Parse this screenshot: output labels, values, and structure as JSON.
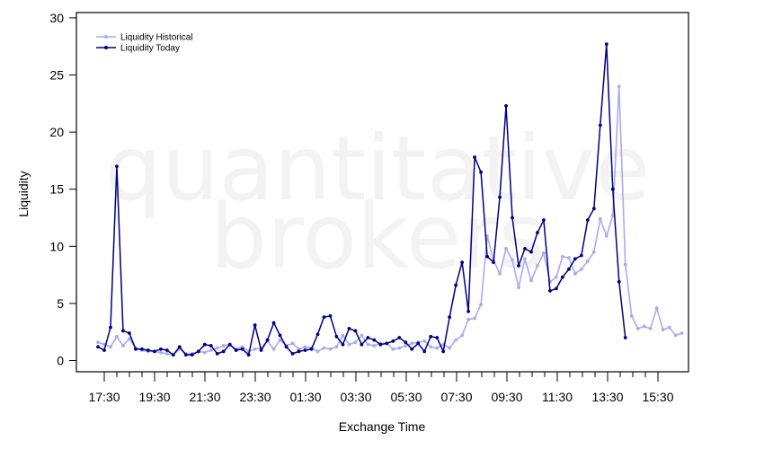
{
  "watermark": {
    "line1": "quantitative",
    "line2": "brokers"
  },
  "colors": {
    "historical": "#aaaaee",
    "today": "#000080",
    "axis": "#000000"
  },
  "chart_data": {
    "type": "line",
    "title": "",
    "xlabel": "Exchange Time",
    "ylabel": "Liquidity",
    "ylim": [
      0,
      30
    ],
    "yticks": [
      0,
      5,
      10,
      15,
      20,
      25,
      30
    ],
    "x_start_index": 0,
    "x_tick_labels": [
      {
        "i": 1,
        "label": "17:30"
      },
      {
        "i": 5,
        "label": "19:30"
      },
      {
        "i": 9,
        "label": "21:30"
      },
      {
        "i": 13,
        "label": "23:30"
      },
      {
        "i": 17,
        "label": "01:30"
      },
      {
        "i": 21,
        "label": "03:30"
      },
      {
        "i": 25,
        "label": "05:30"
      },
      {
        "i": 29,
        "label": "07:30"
      },
      {
        "i": 33,
        "label": "09:30"
      },
      {
        "i": 37,
        "label": "11:30"
      },
      {
        "i": 41,
        "label": "13:30"
      },
      {
        "i": 45,
        "label": "15:30"
      }
    ],
    "grid": false,
    "legend_position": "top-left",
    "series": [
      {
        "name": "Liquidity Historical",
        "color": "#aaaaee",
        "values": [
          1.6,
          1.4,
          1.2,
          2.1,
          1.3,
          1.9,
          1.1,
          0.9,
          0.8,
          0.8,
          0.7,
          0.6,
          0.5,
          1.0,
          0.6,
          0.6,
          0.8,
          0.7,
          0.9,
          1.1,
          1.3,
          1.4,
          1.0,
          1.2,
          0.8,
          1.0,
          1.1,
          1.7,
          1.0,
          1.8,
          1.3,
          1.5,
          1.0,
          1.2,
          1.1,
          0.8,
          1.1,
          1.0,
          1.2,
          2.2,
          1.4,
          1.6,
          2.2,
          1.4,
          1.3,
          1.5,
          1.5,
          1.0,
          1.1,
          1.3,
          1.5,
          1.6,
          1.7,
          1.2,
          1.1,
          1.4,
          1.1,
          1.8,
          2.2,
          3.6,
          3.7,
          4.9,
          10.9,
          8.8,
          7.6,
          9.8,
          8.8,
          6.4,
          8.9,
          7.0,
          8.3,
          9.4,
          6.9,
          7.3,
          9.1,
          9.0,
          7.6,
          8.0,
          8.7,
          9.5,
          12.4,
          10.9,
          12.7,
          24.0,
          8.4,
          3.9,
          2.8,
          3.0,
          2.8,
          4.6,
          2.7,
          2.9,
          2.2,
          2.4
        ]
      },
      {
        "name": "Liquidity Today",
        "color": "#000080",
        "values": [
          1.2,
          0.9,
          2.9,
          17.0,
          2.6,
          2.4,
          1.0,
          1.0,
          0.9,
          0.8,
          1.0,
          0.9,
          0.5,
          1.2,
          0.5,
          0.5,
          0.8,
          1.4,
          1.3,
          0.6,
          0.8,
          1.4,
          0.9,
          1.0,
          0.5,
          3.1,
          0.9,
          1.8,
          3.3,
          2.2,
          1.2,
          0.6,
          0.8,
          0.9,
          1.0,
          2.3,
          3.8,
          3.9,
          2.1,
          1.4,
          2.8,
          2.6,
          1.4,
          2.0,
          1.8,
          1.4,
          1.5,
          1.7,
          2.0,
          1.6,
          1.0,
          1.5,
          0.8,
          2.1,
          2.0,
          0.8,
          3.8,
          6.6,
          8.6,
          4.3,
          17.8,
          16.5,
          9.1,
          8.6,
          14.3,
          22.3,
          12.5,
          8.3,
          9.8,
          9.5,
          11.2,
          12.3,
          6.1,
          6.3,
          7.3,
          8.0,
          8.9,
          9.2,
          12.3,
          13.3,
          20.6,
          27.7,
          15.0,
          6.9,
          2.0
        ]
      }
    ]
  }
}
